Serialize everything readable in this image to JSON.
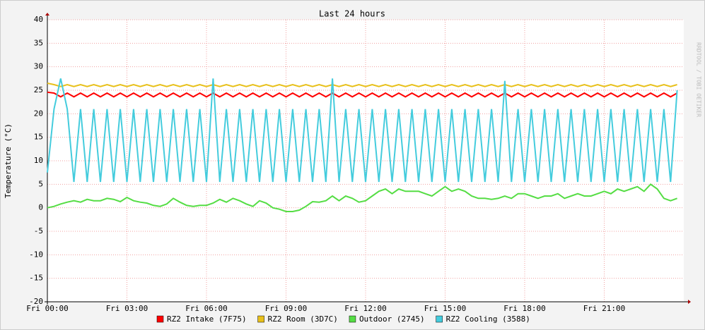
{
  "chart_data": {
    "type": "line",
    "title": "Last 24 hours",
    "y_label": "Temperature (°C)",
    "side_label": "RRDTOOL / TOBI OETIKER",
    "xlim": [
      0,
      24
    ],
    "ylim": [
      -20,
      40
    ],
    "yticks": [
      -20,
      -15,
      -10,
      -5,
      0,
      5,
      10,
      15,
      20,
      25,
      30,
      35,
      40
    ],
    "xticks": [
      {
        "value": 0,
        "label": "Fri 00:00"
      },
      {
        "value": 3,
        "label": "Fri 03:00"
      },
      {
        "value": 6,
        "label": "Fri 06:00"
      },
      {
        "value": 9,
        "label": "Fri 09:00"
      },
      {
        "value": 12,
        "label": "Fri 12:00"
      },
      {
        "value": 15,
        "label": "Fri 15:00"
      },
      {
        "value": 18,
        "label": "Fri 18:00"
      },
      {
        "value": 21,
        "label": "Fri 21:00"
      }
    ],
    "grid": true,
    "x": [
      0,
      0.25,
      0.5,
      0.75,
      1,
      1.25,
      1.5,
      1.75,
      2,
      2.25,
      2.5,
      2.75,
      3,
      3.25,
      3.5,
      3.75,
      4,
      4.25,
      4.5,
      4.75,
      5,
      5.25,
      5.5,
      5.75,
      6,
      6.25,
      6.5,
      6.75,
      7,
      7.25,
      7.5,
      7.75,
      8,
      8.25,
      8.5,
      8.75,
      9,
      9.25,
      9.5,
      9.75,
      10,
      10.25,
      10.5,
      10.75,
      11,
      11.25,
      11.5,
      11.75,
      12,
      12.25,
      12.5,
      12.75,
      13,
      13.25,
      13.5,
      13.75,
      14,
      14.25,
      14.5,
      14.75,
      15,
      15.25,
      15.5,
      15.75,
      16,
      16.25,
      16.5,
      16.75,
      17,
      17.25,
      17.5,
      17.75,
      18,
      18.25,
      18.5,
      18.75,
      19,
      19.25,
      19.5,
      19.75,
      20,
      20.25,
      20.5,
      20.75,
      21,
      21.25,
      21.5,
      21.75,
      22,
      22.25,
      22.5,
      22.75,
      23,
      23.25,
      23.5,
      23.75
    ],
    "series": [
      {
        "name": "RZ2 Intake (7F75)",
        "color": "#ff0000",
        "values": [
          24.6,
          24.4,
          23.6,
          24.4,
          23.6,
          24.4,
          23.6,
          24.4,
          23.6,
          24.4,
          23.6,
          24.4,
          23.6,
          24.4,
          23.6,
          24.4,
          23.6,
          24.4,
          23.6,
          24.4,
          23.6,
          24.4,
          23.6,
          24.4,
          23.6,
          24.4,
          23.6,
          24.4,
          23.6,
          24.4,
          23.6,
          24.4,
          23.6,
          24.4,
          23.6,
          24.4,
          23.6,
          24.4,
          23.6,
          24.4,
          23.6,
          24.4,
          23.6,
          24.4,
          23.6,
          24.4,
          23.6,
          24.4,
          23.6,
          24.4,
          23.6,
          24.4,
          23.6,
          24.4,
          23.6,
          24.4,
          23.6,
          24.4,
          23.6,
          24.4,
          23.6,
          24.4,
          23.6,
          24.4,
          23.6,
          24.4,
          23.6,
          24.4,
          23.6,
          24.4,
          23.6,
          24.4,
          23.6,
          24.4,
          23.6,
          24.4,
          23.6,
          24.4,
          23.6,
          24.4,
          23.6,
          24.4,
          23.6,
          24.4,
          23.6,
          24.4,
          23.6,
          24.4,
          23.6,
          24.4,
          23.6,
          24.4,
          23.6,
          24.4,
          23.6,
          24.4
        ]
      },
      {
        "name": "RZ2 Room (3D7C)",
        "color": "#e8c01a",
        "values": [
          26.5,
          26.2,
          25.8,
          26.2,
          25.8,
          26.2,
          25.8,
          26.2,
          25.8,
          26.2,
          25.8,
          26.2,
          25.8,
          26.2,
          25.8,
          26.2,
          25.8,
          26.2,
          25.8,
          26.2,
          25.8,
          26.2,
          25.8,
          26.2,
          25.8,
          26.2,
          25.8,
          26.2,
          25.8,
          26.2,
          25.8,
          26.2,
          25.8,
          26.2,
          25.8,
          26.2,
          25.8,
          26.2,
          25.8,
          26.2,
          25.8,
          26.2,
          25.8,
          26.2,
          25.8,
          26.2,
          25.8,
          26.2,
          25.8,
          26.2,
          25.8,
          26.2,
          25.8,
          26.2,
          25.8,
          26.2,
          25.8,
          26.2,
          25.8,
          26.2,
          25.8,
          26.2,
          25.8,
          26.2,
          25.8,
          26.2,
          25.8,
          26.2,
          25.8,
          26.2,
          25.8,
          26.2,
          25.8,
          26.2,
          25.8,
          26.2,
          25.8,
          26.2,
          25.8,
          26.2,
          25.8,
          26.2,
          25.8,
          26.2,
          25.8,
          26.2,
          25.8,
          26.2,
          25.8,
          26.2,
          25.8,
          26.2,
          25.8,
          26.2,
          25.8,
          26.2
        ]
      },
      {
        "name": "Outdoor (2745)",
        "color": "#55dd44",
        "values": [
          0,
          0.3,
          0.8,
          1.2,
          1.5,
          1.2,
          1.8,
          1.5,
          1.5,
          2,
          1.8,
          1.3,
          2.2,
          1.5,
          1.2,
          1,
          0.5,
          0.3,
          0.8,
          2,
          1.2,
          0.5,
          0.3,
          0.5,
          0.5,
          1,
          1.8,
          1.2,
          2,
          1.5,
          0.8,
          0.3,
          1.5,
          1,
          0,
          -0.3,
          -0.8,
          -0.8,
          -0.5,
          0.3,
          1.3,
          1.2,
          1.5,
          2.5,
          1.5,
          2.5,
          2,
          1.2,
          1.5,
          2.5,
          3.5,
          4,
          3,
          4,
          3.5,
          3.5,
          3.5,
          3,
          2.5,
          3.5,
          4.5,
          3.5,
          4,
          3.5,
          2.5,
          2,
          2,
          1.8,
          2,
          2.5,
          2,
          3,
          3,
          2.5,
          2,
          2.5,
          2.5,
          3,
          2,
          2.5,
          3,
          2.5,
          2.5,
          3,
          3.5,
          3,
          4,
          3.5,
          4,
          4.5,
          3.5,
          5,
          4,
          2,
          1.5,
          2
        ]
      },
      {
        "name": "RZ2 Cooling (3588)",
        "color": "#44ccdd",
        "values": [
          7.5,
          21,
          27.5,
          21,
          5.5,
          21,
          5.5,
          21,
          5.5,
          21,
          5.5,
          21,
          5.5,
          21,
          5.5,
          21,
          5.5,
          21,
          5.5,
          21,
          5.5,
          21,
          5.5,
          21,
          5.5,
          27.5,
          5.5,
          21,
          5.5,
          21,
          5.5,
          21,
          5.5,
          21,
          5.5,
          21,
          5.5,
          21,
          5.5,
          21,
          5.5,
          21,
          5.5,
          27.5,
          5.5,
          21,
          5.5,
          21,
          5.5,
          21,
          5.5,
          21,
          5.5,
          21,
          5.5,
          21,
          5.5,
          21,
          5.5,
          21,
          5.5,
          21,
          5.5,
          21,
          5.5,
          21,
          5.5,
          21,
          5.5,
          27,
          5.5,
          21,
          5.5,
          21,
          5.5,
          21,
          5.5,
          21,
          5.5,
          21,
          5.5,
          21,
          5.5,
          21,
          5.5,
          21,
          5.5,
          21,
          5.5,
          21,
          5.5,
          21,
          5.5,
          21,
          5.5,
          25
        ]
      }
    ]
  }
}
